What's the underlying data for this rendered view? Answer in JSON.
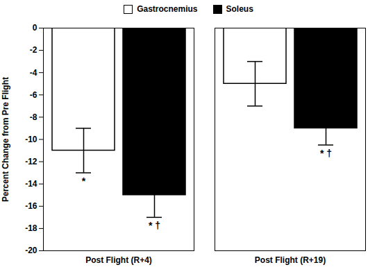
{
  "chart_data": {
    "type": "bar",
    "categories": [
      "Post Flight (R+4)",
      "Post Flight (R+19)"
    ],
    "series": [
      {
        "name": "Gastrocnemius",
        "color": "#ffffff",
        "values": [
          -11.0,
          -5.0
        ],
        "errors": [
          2.0,
          2.0
        ]
      },
      {
        "name": "Soleus",
        "color": "#000000",
        "values": [
          -15.0,
          -9.0
        ],
        "errors": [
          2.0,
          1.5
        ]
      }
    ],
    "ylabel": "Percent Change from Pre Flight",
    "ylim": [
      -20,
      0
    ],
    "yticks": [
      0,
      -2,
      -4,
      -6,
      -8,
      -10,
      -12,
      -14,
      -16,
      -18,
      -20
    ],
    "annotations": [
      {
        "category": "Post Flight (R+4)",
        "series": "Gastrocnemius",
        "text": "*"
      },
      {
        "category": "Post Flight (R+4)",
        "series": "Soleus",
        "text": "* †"
      },
      {
        "category": "Post Flight (R+19)",
        "series": "Soleus",
        "text": "* †"
      }
    ],
    "legend": "top",
    "grid": false
  }
}
